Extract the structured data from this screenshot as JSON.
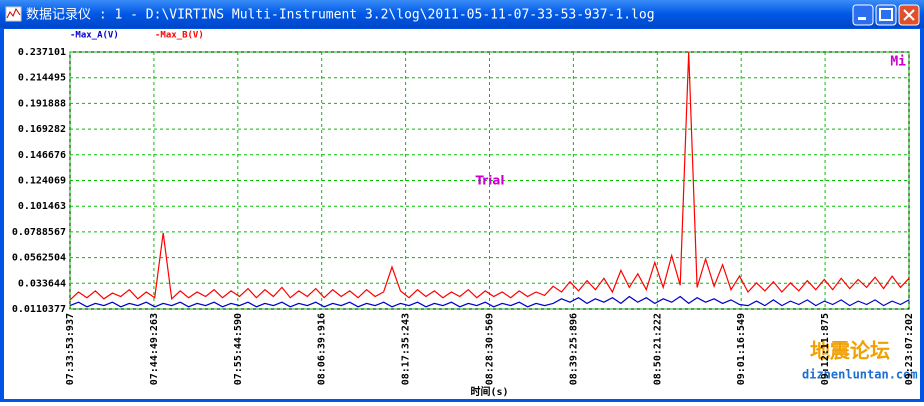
{
  "window": {
    "title": "数据记录仪 : 1 - D:\\VIRTINS Multi-Instrument 3.2\\log\\2011-05-11-07-33-53-937-1.log"
  },
  "watermark": {
    "text": "地震论坛",
    "url": "dizhenluntan.com"
  },
  "chart_data": {
    "type": "line",
    "xlabel": "时间(s)",
    "annotations": [
      "Trial",
      "Mi"
    ],
    "grid": true,
    "ylim": [
      0.0110377,
      0.237101
    ],
    "yticks": [
      0.0110377,
      0.033644,
      0.0562504,
      0.0788567,
      0.101463,
      0.124069,
      0.146676,
      0.169282,
      0.191888,
      0.214495,
      0.237101
    ],
    "xticks": [
      "07:33:53:937",
      "07:44:49:263",
      "07:55:44:590",
      "08:06:39:916",
      "08:17:35:243",
      "08:28:30:569",
      "08:39:25:896",
      "08:50:21:222",
      "09:01:16:549",
      "09:12:11:875",
      "09:23:07:202"
    ],
    "series": [
      {
        "name": "-Max_B(V)",
        "color": "#ff0000",
        "values": [
          0.019,
          0.026,
          0.021,
          0.027,
          0.02,
          0.025,
          0.022,
          0.028,
          0.02,
          0.026,
          0.021,
          0.078,
          0.02,
          0.027,
          0.021,
          0.026,
          0.022,
          0.028,
          0.021,
          0.027,
          0.022,
          0.029,
          0.021,
          0.028,
          0.022,
          0.03,
          0.021,
          0.027,
          0.022,
          0.029,
          0.021,
          0.028,
          0.022,
          0.027,
          0.021,
          0.028,
          0.022,
          0.026,
          0.048,
          0.027,
          0.021,
          0.028,
          0.022,
          0.027,
          0.021,
          0.026,
          0.022,
          0.028,
          0.021,
          0.027,
          0.022,
          0.026,
          0.021,
          0.027,
          0.022,
          0.026,
          0.023,
          0.031,
          0.026,
          0.035,
          0.027,
          0.036,
          0.028,
          0.038,
          0.026,
          0.045,
          0.03,
          0.042,
          0.028,
          0.052,
          0.03,
          0.058,
          0.032,
          0.237,
          0.03,
          0.055,
          0.031,
          0.05,
          0.028,
          0.04,
          0.026,
          0.034,
          0.027,
          0.035,
          0.026,
          0.034,
          0.027,
          0.036,
          0.028,
          0.037,
          0.028,
          0.038,
          0.029,
          0.037,
          0.03,
          0.039,
          0.029,
          0.04,
          0.03,
          0.038
        ]
      },
      {
        "name": "-Max_A(V)",
        "color": "#0000cc",
        "values": [
          0.014,
          0.017,
          0.013,
          0.016,
          0.014,
          0.017,
          0.013,
          0.016,
          0.014,
          0.017,
          0.013,
          0.016,
          0.014,
          0.017,
          0.013,
          0.016,
          0.014,
          0.017,
          0.013,
          0.016,
          0.014,
          0.017,
          0.013,
          0.016,
          0.014,
          0.017,
          0.013,
          0.016,
          0.014,
          0.017,
          0.013,
          0.016,
          0.014,
          0.017,
          0.013,
          0.016,
          0.014,
          0.017,
          0.013,
          0.016,
          0.014,
          0.017,
          0.013,
          0.016,
          0.014,
          0.017,
          0.013,
          0.016,
          0.014,
          0.017,
          0.013,
          0.016,
          0.014,
          0.017,
          0.013,
          0.016,
          0.014,
          0.016,
          0.02,
          0.017,
          0.021,
          0.016,
          0.02,
          0.017,
          0.021,
          0.016,
          0.022,
          0.017,
          0.021,
          0.016,
          0.02,
          0.017,
          0.022,
          0.016,
          0.021,
          0.017,
          0.02,
          0.016,
          0.019,
          0.015,
          0.014,
          0.018,
          0.014,
          0.019,
          0.014,
          0.018,
          0.015,
          0.019,
          0.014,
          0.018,
          0.015,
          0.019,
          0.014,
          0.018,
          0.015,
          0.019,
          0.014,
          0.018,
          0.015,
          0.019
        ]
      }
    ]
  }
}
